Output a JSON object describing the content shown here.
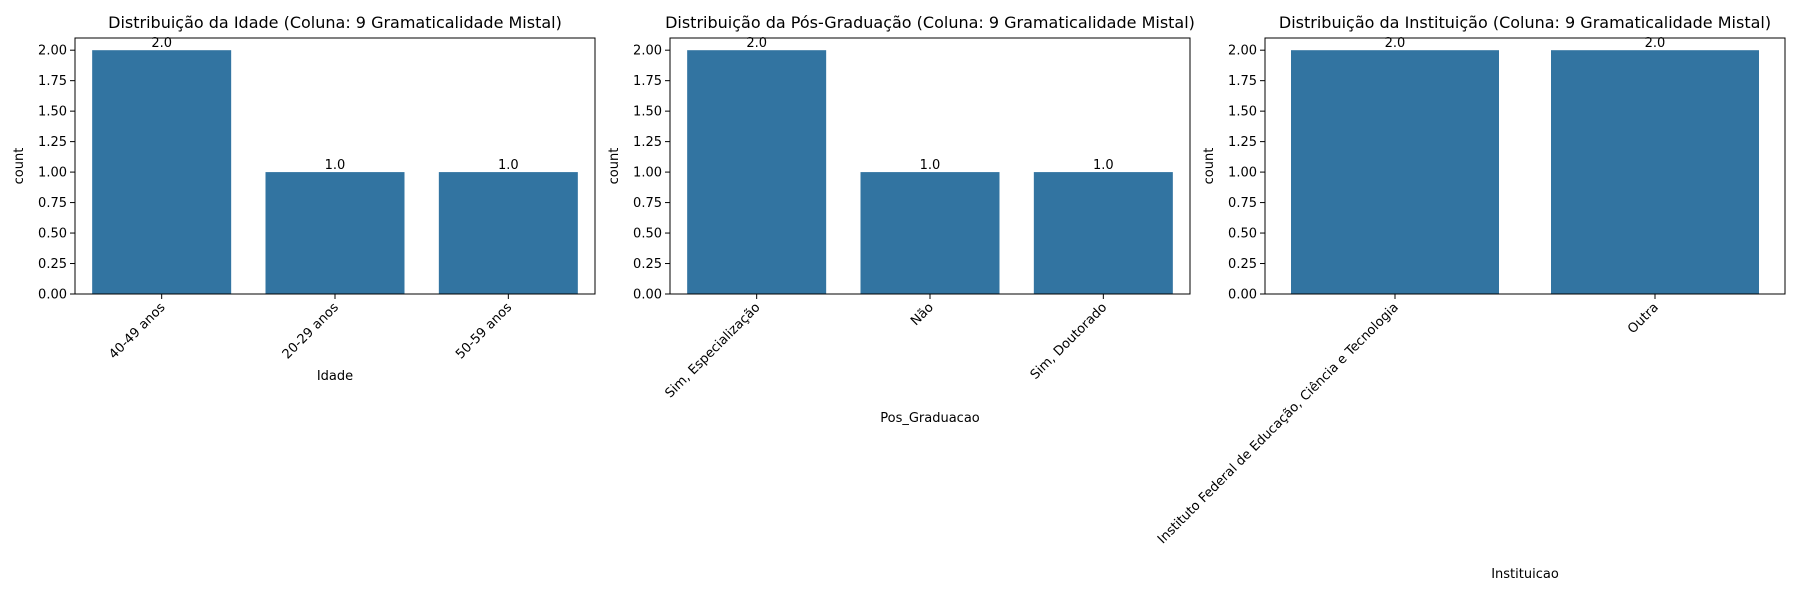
{
  "figure": {
    "background": "#ffffff"
  },
  "chart_data": [
    {
      "type": "bar",
      "title": "Distribuição da Idade (Coluna: 9 Gramaticalidade Mistal)",
      "xlabel": "Idade",
      "ylabel": "count",
      "categories": [
        "40-49 anos",
        "20-29 anos",
        "50-59 anos"
      ],
      "values": [
        2.0,
        1.0,
        1.0
      ],
      "value_labels": [
        "2.0",
        "1.0",
        "1.0"
      ],
      "ylim": [
        0,
        2.1
      ],
      "yticks": [
        "0.00",
        "0.25",
        "0.50",
        "0.75",
        "1.00",
        "1.25",
        "1.50",
        "1.75",
        "2.00"
      ],
      "xtick_rotation": 45,
      "bar_color": "#3274a1",
      "grid": false
    },
    {
      "type": "bar",
      "title": "Distribuição da Pós-Graduação (Coluna: 9 Gramaticalidade Mistal)",
      "xlabel": "Pos_Graduacao",
      "ylabel": "count",
      "categories": [
        "Sim, Especialização",
        "Não",
        "Sim, Doutorado"
      ],
      "values": [
        2.0,
        1.0,
        1.0
      ],
      "value_labels": [
        "2.0",
        "1.0",
        "1.0"
      ],
      "ylim": [
        0,
        2.1
      ],
      "yticks": [
        "0.00",
        "0.25",
        "0.50",
        "0.75",
        "1.00",
        "1.25",
        "1.50",
        "1.75",
        "2.00"
      ],
      "xtick_rotation": 45,
      "bar_color": "#3274a1",
      "grid": false
    },
    {
      "type": "bar",
      "title": "Distribuição da Instituição (Coluna: 9 Gramaticalidade Mistal)",
      "xlabel": "Instituicao",
      "ylabel": "count",
      "categories": [
        "Instituto Federal de Educação, Ciência e Tecnologia",
        "Outra"
      ],
      "values": [
        2.0,
        2.0
      ],
      "value_labels": [
        "2.0",
        "2.0"
      ],
      "ylim": [
        0,
        2.1
      ],
      "yticks": [
        "0.00",
        "0.25",
        "0.50",
        "0.75",
        "1.00",
        "1.25",
        "1.50",
        "1.75",
        "2.00"
      ],
      "xtick_rotation": 45,
      "bar_color": "#3274a1",
      "grid": false
    }
  ]
}
